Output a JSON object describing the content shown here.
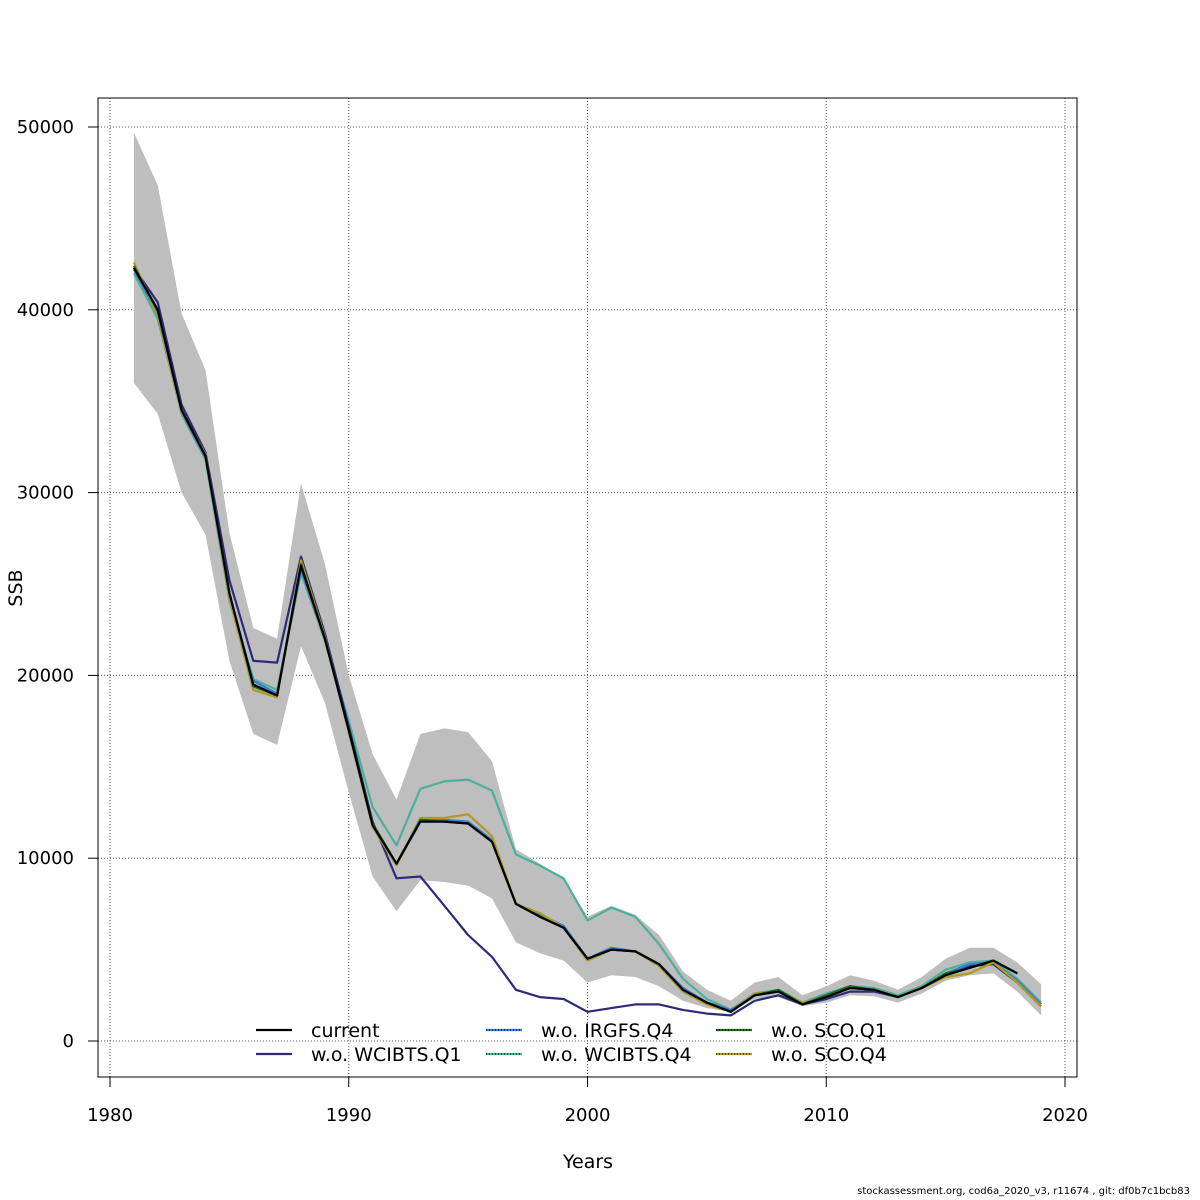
{
  "footnote": "stockassessment.org, cod6a_2020_v3, r11674 , git: df0b7c1bcb83",
  "chart_data": {
    "type": "line",
    "title": "",
    "xlabel": "Years",
    "ylabel": "SSB",
    "xlim": [
      1980,
      2020
    ],
    "ylim": [
      0,
      50000
    ],
    "xticks": [
      1980,
      1990,
      2000,
      2010,
      2020
    ],
    "yticks": [
      0,
      10000,
      20000,
      30000,
      40000,
      50000
    ],
    "grid": true,
    "legend_position": "bottom-center",
    "x": [
      1981,
      1982,
      1983,
      1984,
      1985,
      1986,
      1987,
      1988,
      1989,
      1990,
      1991,
      1992,
      1993,
      1994,
      1995,
      1996,
      1997,
      1998,
      1999,
      2000,
      2001,
      2002,
      2003,
      2004,
      2005,
      2006,
      2007,
      2008,
      2009,
      2010,
      2011,
      2012,
      2013,
      2014,
      2015,
      2016,
      2017,
      2018,
      2019
    ],
    "confidence_band": {
      "color": "#bebebe",
      "lower": [
        36000,
        34300,
        30000,
        27700,
        20800,
        16800,
        16200,
        21600,
        18500,
        13600,
        9000,
        7100,
        8800,
        8700,
        8500,
        7800,
        5400,
        4800,
        4400,
        3200,
        3600,
        3500,
        3000,
        2200,
        1800,
        1600,
        2300,
        2400,
        1900,
        2100,
        2500,
        2450,
        2100,
        2600,
        3300,
        3600,
        3700,
        2700,
        1400
      ],
      "upper": [
        49700,
        46800,
        39800,
        36700,
        27800,
        22600,
        22000,
        30500,
        26100,
        20000,
        15700,
        13200,
        16800,
        17100,
        16900,
        15300,
        10500,
        9700,
        8900,
        6800,
        7400,
        6900,
        5800,
        3800,
        2800,
        2200,
        3200,
        3500,
        2500,
        3000,
        3600,
        3300,
        2800,
        3500,
        4500,
        5100,
        5100,
        4300,
        3100
      ]
    },
    "series": [
      {
        "name": "current",
        "color": "#000000",
        "values": [
          42300,
          40000,
          34500,
          32000,
          24500,
          19500,
          18900,
          26000,
          22000,
          17000,
          11800,
          9700,
          12000,
          12000,
          11900,
          10900,
          7500,
          6800,
          6200,
          4500,
          5000,
          4900,
          4200,
          2800,
          2100,
          1600,
          2500,
          2700,
          2000,
          2400,
          2900,
          2800,
          2400,
          2900,
          3600,
          4000,
          4400,
          3700,
          null
        ]
      },
      {
        "name": "w.o. WCIBTS.Q1",
        "color": "#2d2a7a",
        "values": [
          42300,
          40400,
          34800,
          32200,
          25200,
          20800,
          20700,
          26500,
          22300,
          17200,
          12000,
          8900,
          9000,
          7400,
          5800,
          4600,
          2800,
          2400,
          2300,
          1600,
          1800,
          2000,
          2000,
          1700,
          1500,
          1400,
          2200,
          2500,
          2000,
          2300,
          2700,
          2700,
          2400,
          2900,
          3700,
          4100,
          4200,
          3200,
          1900
        ]
      },
      {
        "name": "w.o. IRGFS.Q4",
        "color": "#3a7bd5",
        "values": [
          42200,
          39800,
          34400,
          31900,
          24300,
          19700,
          19000,
          25800,
          22000,
          16900,
          11800,
          9700,
          12100,
          12100,
          12000,
          11000,
          7500,
          6900,
          6300,
          4500,
          5100,
          4900,
          4200,
          2900,
          2100,
          1700,
          2500,
          2700,
          2000,
          2400,
          2900,
          2800,
          2400,
          2900,
          3700,
          4200,
          4300,
          3300,
          2000
        ]
      },
      {
        "name": "w.o. WCIBTS.Q4",
        "color": "#4cb09a",
        "values": [
          42000,
          39500,
          34300,
          31800,
          24100,
          19800,
          19200,
          25600,
          21900,
          17500,
          12800,
          10700,
          13800,
          14200,
          14300,
          13700,
          10200,
          9600,
          8900,
          6600,
          7300,
          6800,
          5300,
          3400,
          2300,
          1700,
          2600,
          2800,
          2100,
          2600,
          3000,
          2900,
          2500,
          3000,
          3900,
          4300,
          4400,
          3400,
          2100
        ]
      },
      {
        "name": "w.o. SCO.Q1",
        "color": "#1e6b1e",
        "values": [
          42400,
          39900,
          34500,
          32000,
          24500,
          19400,
          18900,
          26100,
          22000,
          17000,
          11900,
          9700,
          12100,
          12000,
          11900,
          10900,
          7500,
          6800,
          6200,
          4500,
          5000,
          4900,
          4200,
          2800,
          2100,
          1600,
          2500,
          2800,
          2000,
          2500,
          3000,
          2800,
          2400,
          2900,
          3700,
          4000,
          4400,
          3700,
          null
        ]
      },
      {
        "name": "w.o. SCO.Q4",
        "color": "#b09a20",
        "values": [
          42600,
          39700,
          34400,
          32100,
          24200,
          19200,
          18800,
          26300,
          22100,
          16900,
          11700,
          9600,
          12200,
          12200,
          12400,
          11200,
          7500,
          7000,
          6200,
          4400,
          5000,
          4900,
          4100,
          2700,
          2000,
          1600,
          2600,
          2700,
          2100,
          2400,
          3000,
          2800,
          2400,
          2900,
          3500,
          3700,
          4300,
          3200,
          1900
        ]
      }
    ]
  }
}
